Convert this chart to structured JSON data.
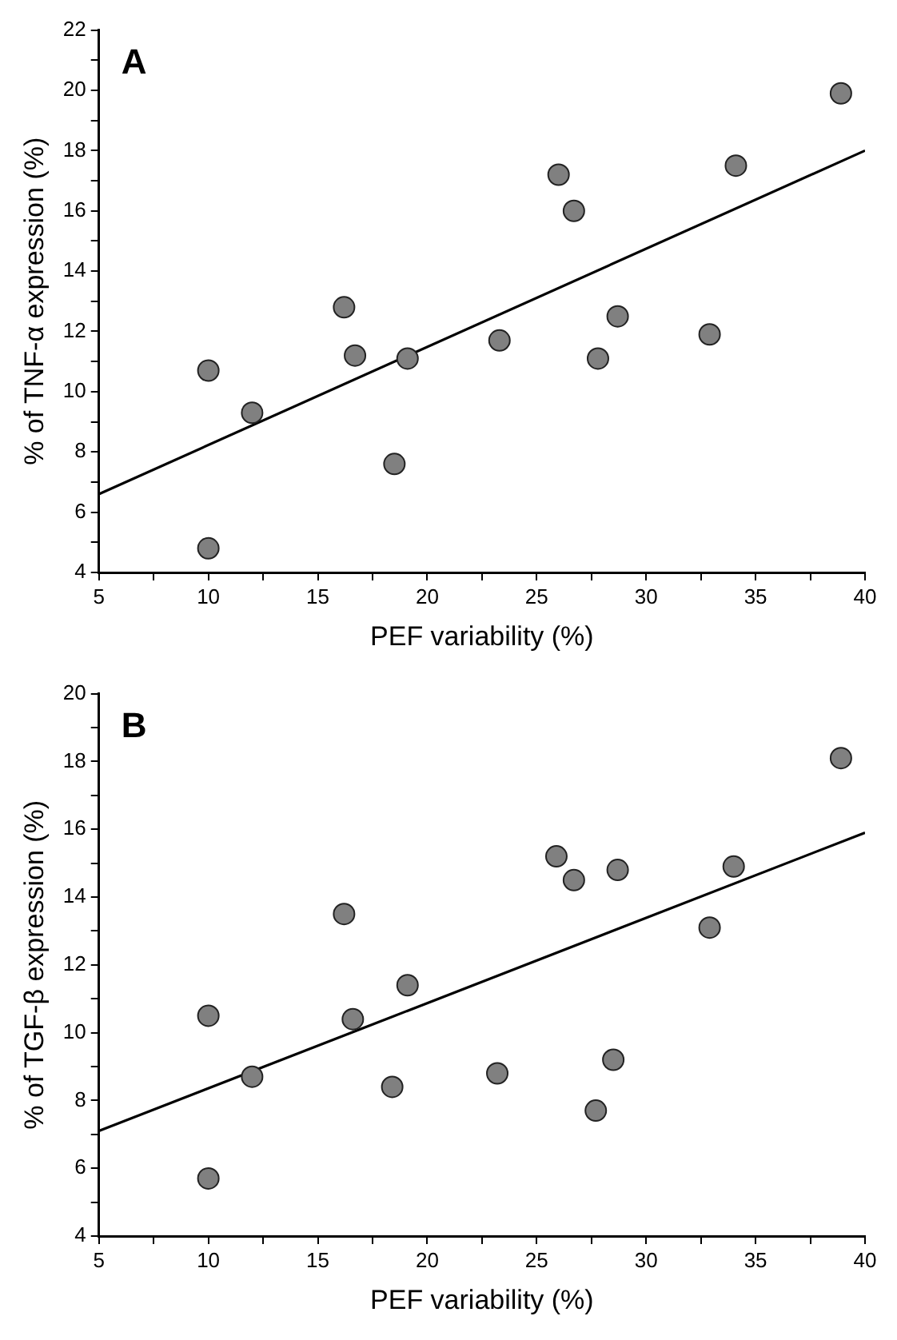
{
  "chart_data": [
    {
      "type": "scatter",
      "annotations": [
        "A"
      ],
      "xlabel": "PEF variability (%)",
      "ylabel": "% of TNF-α expression (%)",
      "grid": false,
      "legend": false,
      "marker": "circle",
      "xlim": [
        5,
        40
      ],
      "xticks": [
        5,
        {
          "value": 7.5,
          "label": null
        },
        10,
        {
          "value": 12.5,
          "label": null
        },
        15,
        {
          "value": 17.5,
          "label": null
        },
        20,
        {
          "value": 22.5,
          "label": null
        },
        25,
        {
          "value": 27.5,
          "label": null
        },
        30,
        {
          "value": 32.5,
          "label": null
        },
        35,
        {
          "value": 37.5,
          "label": null
        },
        40
      ],
      "ylim": [
        4,
        22
      ],
      "yticks": [
        4,
        {
          "value": 5,
          "label": null
        },
        6,
        {
          "value": 7,
          "label": null
        },
        8,
        {
          "value": 9,
          "label": null
        },
        10,
        {
          "value": 11,
          "label": null
        },
        12,
        {
          "value": 13,
          "label": null
        },
        14,
        {
          "value": 15,
          "label": null
        },
        16,
        {
          "value": 17,
          "label": null
        },
        18,
        {
          "value": 19,
          "label": null
        },
        20,
        {
          "value": 21,
          "label": null
        },
        22
      ],
      "series": [
        {
          "color": "#808080",
          "x": [
            10,
            10,
            12,
            16.2,
            16.7,
            18.5,
            19.1,
            23.3,
            26,
            26.7,
            27.8,
            28.7,
            32.9,
            34.1,
            38.9
          ],
          "values": [
            10.7,
            4.8,
            9.3,
            12.8,
            11.2,
            7.6,
            11.1,
            11.7,
            17.2,
            16,
            11.1,
            12.5,
            11.9,
            17.5,
            19.9
          ]
        },
        {
          "type": "line",
          "color": "#000000",
          "marker": "none",
          "line_style": "solid",
          "x": [
            5,
            40
          ],
          "values": [
            6.6,
            18
          ]
        }
      ]
    },
    {
      "type": "scatter",
      "annotations": [
        "B"
      ],
      "xlabel": "PEF variability (%)",
      "ylabel": "% of TGF-β expression (%)",
      "grid": false,
      "legend": false,
      "marker": "circle",
      "xlim": [
        5,
        40
      ],
      "xticks": [
        5,
        {
          "value": 7.5,
          "label": null
        },
        10,
        {
          "value": 12.5,
          "label": null
        },
        15,
        {
          "value": 17.5,
          "label": null
        },
        20,
        {
          "value": 22.5,
          "label": null
        },
        25,
        {
          "value": 27.5,
          "label": null
        },
        30,
        {
          "value": 32.5,
          "label": null
        },
        35,
        {
          "value": 37.5,
          "label": null
        },
        40
      ],
      "ylim": [
        4,
        20
      ],
      "yticks": [
        4,
        {
          "value": 5,
          "label": null
        },
        6,
        {
          "value": 7,
          "label": null
        },
        8,
        {
          "value": 9,
          "label": null
        },
        10,
        {
          "value": 11,
          "label": null
        },
        12,
        {
          "value": 13,
          "label": null
        },
        14,
        {
          "value": 15,
          "label": null
        },
        16,
        {
          "value": 17,
          "label": null
        },
        18,
        {
          "value": 19,
          "label": null
        },
        20
      ],
      "series": [
        {
          "color": "#808080",
          "x": [
            10,
            10,
            12,
            16.2,
            16.6,
            18.4,
            19.1,
            23.2,
            25.9,
            26.7,
            27.7,
            28.5,
            28.7,
            32.9,
            34,
            38.9
          ],
          "values": [
            10.5,
            5.7,
            8.7,
            13.5,
            10.4,
            8.4,
            11.4,
            8.8,
            15.2,
            14.5,
            7.7,
            9.2,
            14.8,
            13.1,
            14.9,
            18.1
          ]
        },
        {
          "type": "line",
          "color": "#000000",
          "marker": "none",
          "line_style": "solid",
          "x": [
            5,
            40
          ],
          "values": [
            7.1,
            15.9
          ]
        }
      ]
    }
  ]
}
